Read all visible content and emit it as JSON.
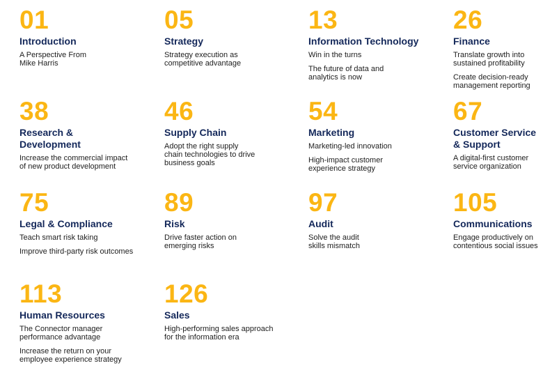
{
  "sections": [
    {
      "number": "01",
      "title": [
        "Introduction"
      ],
      "items": [
        [
          "A Perspective From",
          "Mike Harris"
        ]
      ]
    },
    {
      "number": "05",
      "title": [
        "Strategy"
      ],
      "items": [
        [
          "Strategy execution as",
          "competitive advantage"
        ]
      ]
    },
    {
      "number": "13",
      "title": [
        "Information Technology"
      ],
      "items": [
        [
          "Win in the turns"
        ],
        [
          "The future of data and",
          "analytics is now"
        ]
      ]
    },
    {
      "number": "26",
      "title": [
        "Finance"
      ],
      "items": [
        [
          "Translate growth into",
          "sustained profitability"
        ],
        [
          "Create decision-ready",
          "management reporting"
        ]
      ]
    },
    {
      "number": "38",
      "title": [
        "Research &",
        "Development"
      ],
      "items": [
        [
          "Increase the commercial impact",
          "of new product development"
        ]
      ]
    },
    {
      "number": "46",
      "title": [
        "Supply Chain"
      ],
      "items": [
        [
          "Adopt the right supply",
          "chain technologies to drive",
          "business goals"
        ]
      ]
    },
    {
      "number": "54",
      "title": [
        "Marketing"
      ],
      "items": [
        [
          "Marketing-led innovation"
        ],
        [
          "High-impact customer",
          "experience strategy"
        ]
      ]
    },
    {
      "number": "67",
      "title": [
        "Customer Service",
        "& Support"
      ],
      "items": [
        [
          "A digital-first customer",
          "service organization"
        ]
      ]
    },
    {
      "number": "75",
      "title": [
        "Legal & Compliance"
      ],
      "items": [
        [
          "Teach smart risk taking"
        ],
        [
          "Improve third-party risk outcomes"
        ]
      ]
    },
    {
      "number": "89",
      "title": [
        "Risk"
      ],
      "items": [
        [
          "Drive faster action on",
          "emerging risks"
        ]
      ]
    },
    {
      "number": "97",
      "title": [
        "Audit"
      ],
      "items": [
        [
          "Solve the audit",
          "skills mismatch"
        ]
      ]
    },
    {
      "number": "105",
      "title": [
        "Communications"
      ],
      "items": [
        [
          "Engage productively on",
          "contentious social issues"
        ]
      ]
    },
    {
      "number": "113",
      "title": [
        "Human Resources"
      ],
      "items": [
        [
          "The Connector manager",
          "performance advantage"
        ],
        [
          "Increase the return on your",
          "employee experience strategy"
        ]
      ]
    },
    {
      "number": "126",
      "title": [
        "Sales"
      ],
      "items": [
        [
          "High-performing sales approach",
          "for the information era"
        ]
      ]
    }
  ]
}
